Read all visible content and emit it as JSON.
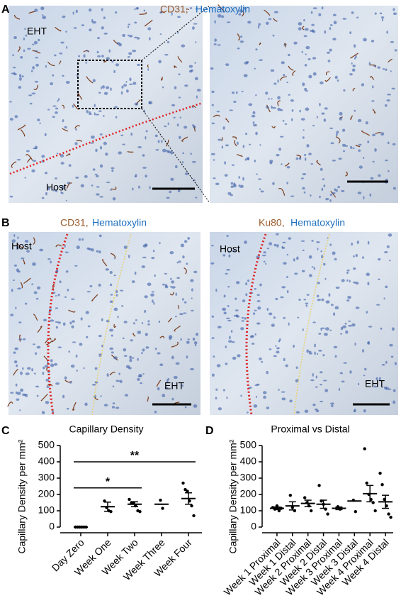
{
  "panels": {
    "a": {
      "letter": "A",
      "stain_1": "CD31,",
      "stain_2": "Hematoxylin",
      "eht": "EHT",
      "host": "Host"
    },
    "b": {
      "letter": "B",
      "left_stain_1": "CD31,",
      "left_stain_2": "Hematoxylin",
      "right_stain_1": "Ku80,",
      "right_stain_2": "Hematoxylin",
      "left_host": "Host",
      "left_eht": "EHT",
      "right_host": "Host",
      "right_eht": "EHT"
    },
    "c": {
      "letter": "C"
    },
    "d": {
      "letter": "D"
    }
  },
  "chart_data": [
    {
      "type": "dot",
      "title": "Capillary Density",
      "y_label": "Capillary Density per mm²",
      "categories": [
        "Day Zero",
        "Week One",
        "Week Two",
        "Week Three",
        "Week Four"
      ],
      "points": [
        [
          0,
          0,
          0,
          0,
          0,
          0
        ],
        [
          160,
          120,
          100,
          95
        ],
        [
          170,
          150,
          150,
          130,
          100,
          95
        ],
        [
          165,
          115
        ],
        [
          270,
          230,
          220,
          160,
          130,
          70
        ]
      ],
      "means": [
        0,
        125,
        140,
        140,
        175
      ],
      "sem": [
        0,
        28,
        15,
        0,
        35
      ],
      "ylim": [
        0,
        500
      ],
      "yticks": [
        0,
        100,
        200,
        300,
        400,
        500
      ],
      "color": "#000000",
      "annotations": [
        {
          "text": "*",
          "from": 0,
          "to": 2,
          "y": 240
        },
        {
          "text": "**",
          "from": 0,
          "to": 4,
          "y": 400
        }
      ]
    },
    {
      "type": "dot",
      "title": "Proximal vs Distal",
      "y_label": "Capillary Density per mm²",
      "categories": [
        "Week 1 Proximal",
        "Week 1 Distal",
        "Week 2 Proximal",
        "Week 2 Distal",
        "Week 3 Proximal",
        "Week 3 Distal",
        "Week 4 Proximal",
        "Week 4 Distal"
      ],
      "points": [
        [
          120,
          110,
          130,
          100,
          115
        ],
        [
          195,
          120,
          100
        ],
        [
          180,
          150,
          130,
          100
        ],
        [
          255,
          160,
          140,
          110,
          80
        ],
        [
          125,
          110
        ],
        [
          165,
          95
        ],
        [
          480,
          270,
          200,
          170,
          150,
          100
        ],
        [
          330,
          260,
          170,
          130,
          80,
          60
        ]
      ],
      "means": [
        115,
        130,
        145,
        140,
        115,
        160,
        205,
        155
      ],
      "sem": [
        8,
        25,
        20,
        25,
        8,
        0,
        50,
        40
      ],
      "ylim": [
        0,
        500
      ],
      "yticks": [
        0,
        100,
        200,
        300,
        400,
        500
      ],
      "color": "#000000",
      "annotations": []
    }
  ]
}
